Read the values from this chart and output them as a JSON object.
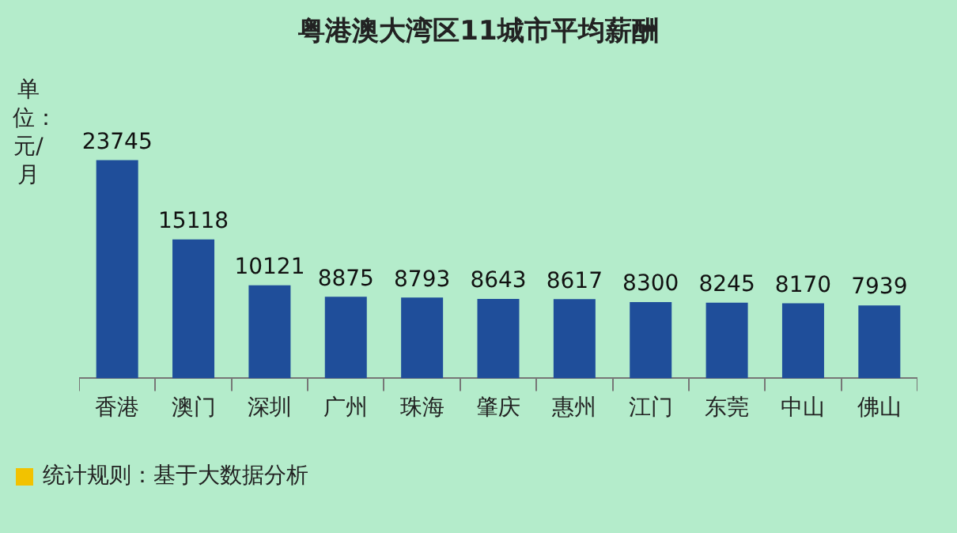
{
  "chart_data": {
    "type": "bar",
    "title": "粤港澳大湾区11城市平均薪酬",
    "ylabel": "单位：元/月",
    "categories": [
      "香港",
      "澳门",
      "深圳",
      "广州",
      "珠海",
      "肇庆",
      "惠州",
      "江门",
      "东莞",
      "中山",
      "佛山"
    ],
    "values": [
      23745,
      15118,
      10121,
      8875,
      8793,
      8643,
      8617,
      8300,
      8245,
      8170,
      7939
    ],
    "color": "#1f4e9a",
    "data_labels": true,
    "grid": false,
    "legend": false,
    "annotations": [
      "统计规则：基于大数据分析"
    ]
  }
}
